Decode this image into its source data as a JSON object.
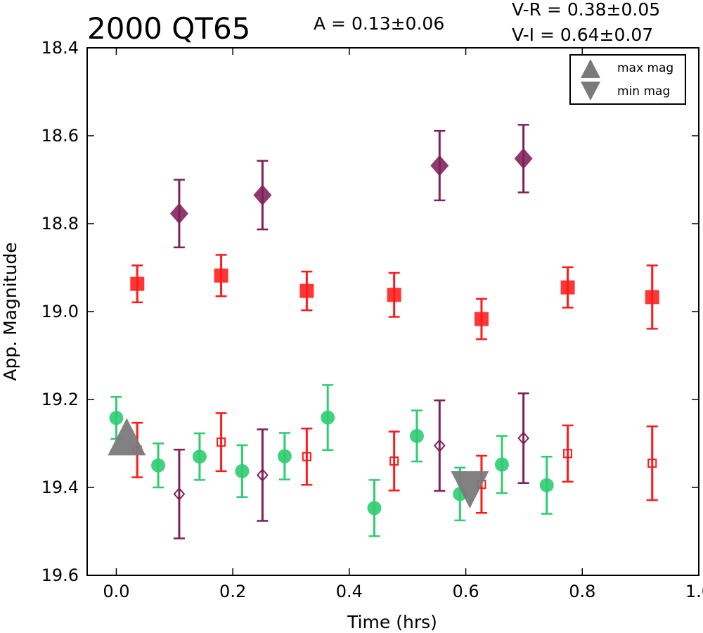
{
  "chart_data": {
    "type": "scatter",
    "title": "2000 QT65",
    "annotations": {
      "amplitude": "A  = 0.13±0.06",
      "v_r": "V-R = 0.38±0.05",
      "v_i": "V-I  = 0.64±0.07"
    },
    "xlabel": "Time (hrs)",
    "ylabel": "App. Magnitude",
    "xlim": [
      -0.05,
      1.0
    ],
    "ylim": [
      19.6,
      18.4
    ],
    "y_inverted": true,
    "xticks": [
      "0.0",
      "0.2",
      "0.4",
      "0.6",
      "0.8",
      "1.0"
    ],
    "yticks": [
      "18.4",
      "18.6",
      "18.8",
      "19.0",
      "19.2",
      "19.4",
      "19.6"
    ],
    "legend": {
      "position": "top-right",
      "entries": [
        {
          "label": "max mag",
          "marker": "triangle-up"
        },
        {
          "label": "min mag",
          "marker": "triangle-down"
        }
      ]
    },
    "series": [
      {
        "marker": "diamond-filled",
        "color": "#7e1f5a",
        "points": [
          {
            "x": 0.108,
            "y": 18.777,
            "err": 0.077
          },
          {
            "x": 0.251,
            "y": 18.735,
            "err": 0.078
          },
          {
            "x": 0.555,
            "y": 18.668,
            "err": 0.079
          },
          {
            "x": 0.699,
            "y": 18.652,
            "err": 0.077
          }
        ]
      },
      {
        "marker": "square-filled",
        "color": "#ff1a1a",
        "points": [
          {
            "x": 0.036,
            "y": 18.937,
            "err": 0.042
          },
          {
            "x": 0.18,
            "y": 18.918,
            "err": 0.047
          },
          {
            "x": 0.327,
            "y": 18.953,
            "err": 0.044
          },
          {
            "x": 0.477,
            "y": 18.962,
            "err": 0.05
          },
          {
            "x": 0.627,
            "y": 19.017,
            "err": 0.046
          },
          {
            "x": 0.775,
            "y": 18.945,
            "err": 0.046
          },
          {
            "x": 0.92,
            "y": 18.967,
            "err": 0.072
          }
        ]
      },
      {
        "marker": "circle-filled",
        "color": "#2ecc71",
        "points": [
          {
            "x": 0.0,
            "y": 19.242,
            "err": 0.048
          },
          {
            "x": 0.072,
            "y": 19.35,
            "err": 0.05
          },
          {
            "x": 0.143,
            "y": 19.33,
            "err": 0.053
          },
          {
            "x": 0.216,
            "y": 19.363,
            "err": 0.059
          },
          {
            "x": 0.289,
            "y": 19.329,
            "err": 0.053
          },
          {
            "x": 0.363,
            "y": 19.241,
            "err": 0.074
          },
          {
            "x": 0.443,
            "y": 19.447,
            "err": 0.064
          },
          {
            "x": 0.516,
            "y": 19.283,
            "err": 0.058
          },
          {
            "x": 0.59,
            "y": 19.415,
            "err": 0.06
          },
          {
            "x": 0.662,
            "y": 19.348,
            "err": 0.065
          },
          {
            "x": 0.739,
            "y": 19.395,
            "err": 0.065
          }
        ]
      },
      {
        "marker": "square-open",
        "color": "#ff1a1a",
        "points": [
          {
            "x": 0.036,
            "y": 19.315,
            "err": 0.062
          },
          {
            "x": 0.18,
            "y": 19.297,
            "err": 0.066
          },
          {
            "x": 0.327,
            "y": 19.33,
            "err": 0.064
          },
          {
            "x": 0.477,
            "y": 19.34,
            "err": 0.067
          },
          {
            "x": 0.627,
            "y": 19.393,
            "err": 0.065
          },
          {
            "x": 0.775,
            "y": 19.323,
            "err": 0.064
          },
          {
            "x": 0.92,
            "y": 19.345,
            "err": 0.084
          }
        ]
      },
      {
        "marker": "diamond-open",
        "color": "#7e1f5a",
        "points": [
          {
            "x": 0.108,
            "y": 19.415,
            "err": 0.101
          },
          {
            "x": 0.251,
            "y": 19.372,
            "err": 0.104
          },
          {
            "x": 0.555,
            "y": 19.305,
            "err": 0.103
          },
          {
            "x": 0.699,
            "y": 19.288,
            "err": 0.102
          }
        ]
      },
      {
        "marker": "triangle-up-large",
        "color": "#7a7a7a",
        "points": [
          {
            "x": 0.018,
            "y": 19.295
          }
        ]
      },
      {
        "marker": "triangle-down-large",
        "color": "#7a7a7a",
        "points": [
          {
            "x": 0.607,
            "y": 19.395
          }
        ]
      }
    ]
  }
}
